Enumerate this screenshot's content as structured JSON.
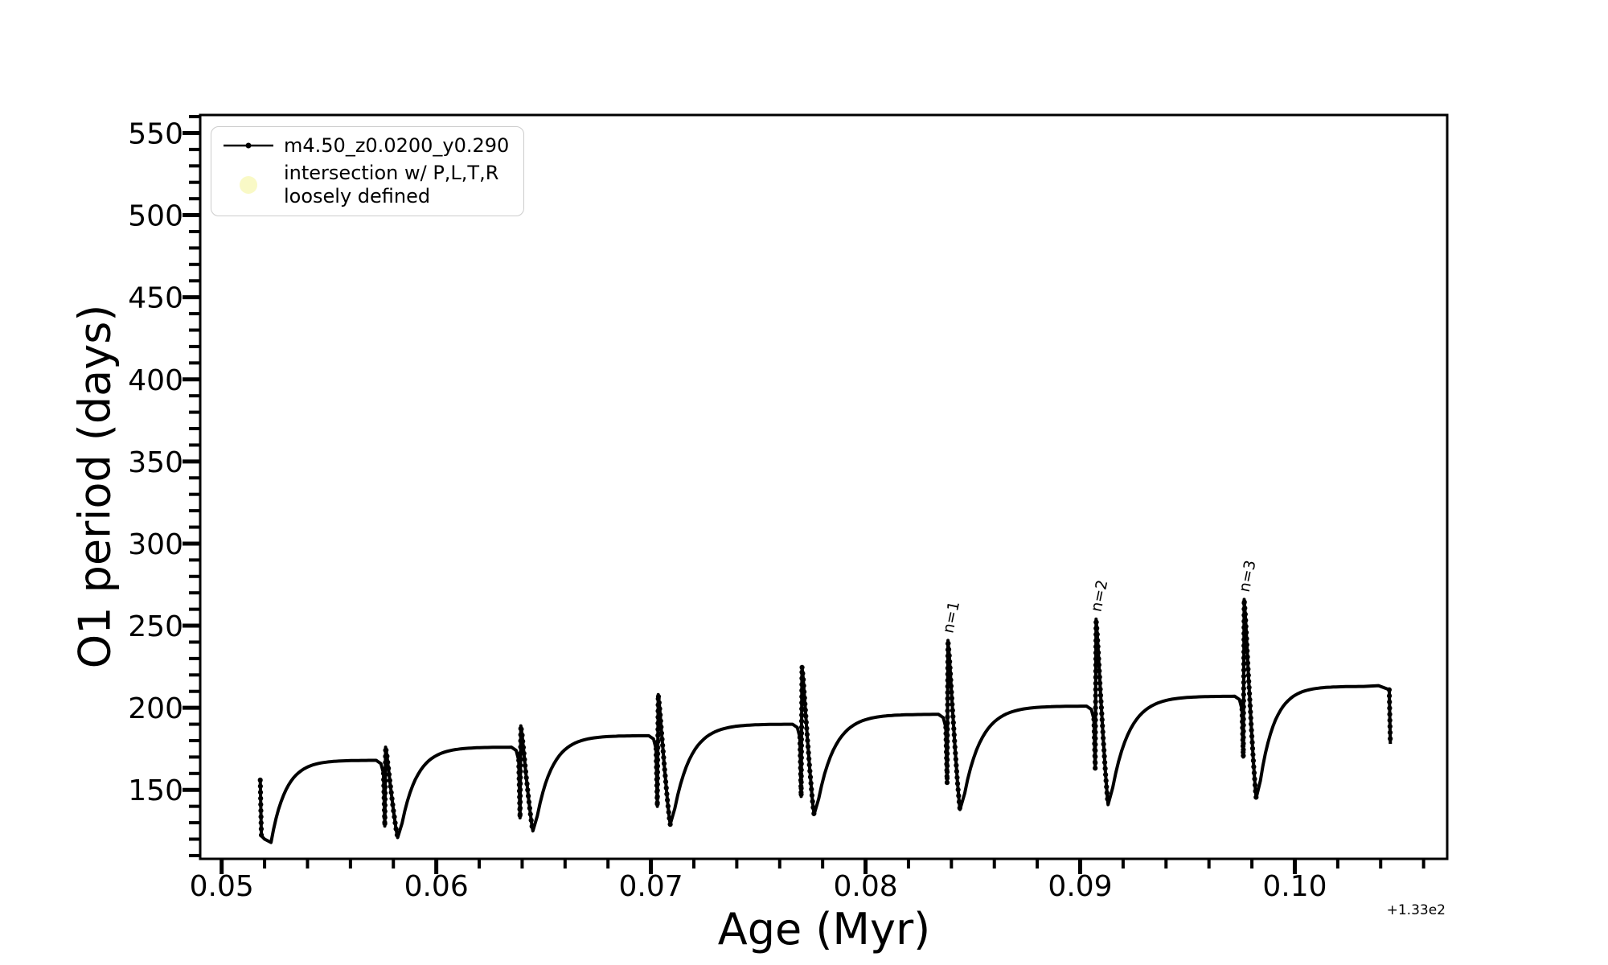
{
  "figure": {
    "background": "#ffffff"
  },
  "axes": {
    "xlabel": "Age (Myr)",
    "ylabel": "O1 period (days)",
    "x_offset_text": "+1.33e2",
    "x_tick_labels": [
      "0.05",
      "0.06",
      "0.07",
      "0.08",
      "0.09",
      "0.10"
    ],
    "y_tick_labels": [
      "150",
      "200",
      "250",
      "300",
      "350",
      "400",
      "450",
      "500",
      "550"
    ]
  },
  "legend": {
    "entries": [
      {
        "label": "m4.50_z0.0200_y0.290",
        "marker": "line-dot",
        "color": "#000000"
      },
      {
        "label": "intersection w/ P,L,T,R\nloosely defined",
        "marker": "circle",
        "color": "#f9f9c6"
      }
    ]
  },
  "chart_data": {
    "type": "line",
    "title": "",
    "xlabel": "Age (Myr)",
    "ylabel": "O1 period (days)",
    "x_offset": "+1.33e2",
    "xlim": [
      0.049,
      0.1071
    ],
    "ylim": [
      108,
      561
    ],
    "x_major_ticks": [
      0.05,
      0.06,
      0.07,
      0.08,
      0.09,
      0.1
    ],
    "x_minor_step": 0.002,
    "y_major_ticks": [
      150,
      200,
      250,
      300,
      350,
      400,
      450,
      500,
      550
    ],
    "y_minor_step": 10,
    "grid": false,
    "legend_position": "upper left",
    "series_name": "m4.50_z0.0200_y0.290",
    "line_color": "#000000",
    "start": {
      "x": 0.0518,
      "y_top": 156,
      "y_drop": 122,
      "x_min": 0.0523,
      "y_min": 118
    },
    "events": [
      {
        "x": 0.0576,
        "plateau": 168,
        "notch": 128,
        "spike": 176,
        "x_min": 0.0582,
        "y_min": 121
      },
      {
        "x": 0.0639,
        "plateau": 176,
        "notch": 133,
        "spike": 189,
        "x_min": 0.0645,
        "y_min": 125
      },
      {
        "x": 0.0703,
        "plateau": 183,
        "notch": 140,
        "spike": 208,
        "x_min": 0.0709,
        "y_min": 129
      },
      {
        "x": 0.077,
        "plateau": 190,
        "notch": 146,
        "spike": 225,
        "x_min": 0.0776,
        "y_min": 135
      },
      {
        "x": 0.0838,
        "plateau": 196,
        "notch": 154,
        "spike": 241,
        "x_min": 0.0844,
        "y_min": 138
      },
      {
        "x": 0.0907,
        "plateau": 201,
        "notch": 163,
        "spike": 254,
        "x_min": 0.0913,
        "y_min": 141
      },
      {
        "x": 0.0976,
        "plateau": 207,
        "notch": 170,
        "spike": 266,
        "x_min": 0.0982,
        "y_min": 145
      }
    ],
    "end": {
      "x_flat": 0.1036,
      "plateau": 213,
      "x_drop": 0.1044,
      "y_end": 178
    },
    "annotations": [
      {
        "text": "n=1",
        "x": 0.0838,
        "y": 243
      },
      {
        "text": "n=2",
        "x": 0.0907,
        "y": 256
      },
      {
        "text": "n=3",
        "x": 0.0976,
        "y": 268
      }
    ]
  }
}
